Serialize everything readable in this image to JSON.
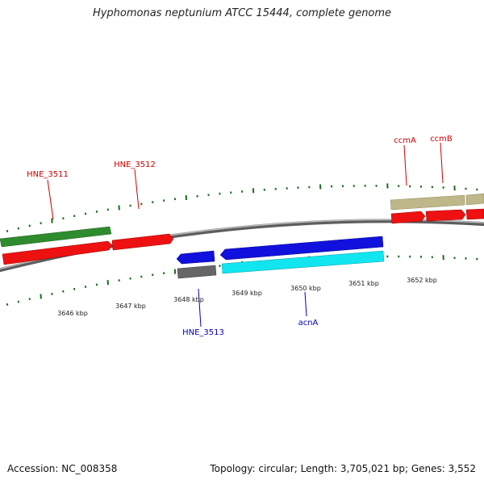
{
  "title": "Hyphomonas neptunium ATCC 15444, complete genome",
  "footer": {
    "accession": "Accession: NC_008358",
    "summary": "Topology: circular; Length: 3,705,021 bp; Genes: 3,552"
  },
  "colors": {
    "backbone": "#8a8a8a",
    "tick_minor": "#1a6b1a",
    "tick_major": "#1a6b1a",
    "label_red": "#cc0000",
    "label_blue": "#0000bb"
  },
  "position_labels": [
    "3646 kbp",
    "3647 kbp",
    "3648 kbp",
    "3649 kbp",
    "3650 kbp",
    "3651 kbp",
    "3652 kbp"
  ],
  "genes": [
    {
      "name": "",
      "color": "#2e8b2e",
      "strand": "+",
      "track": "outer2"
    },
    {
      "name": "HNE_3511",
      "color": "#ee1111",
      "strand": "+",
      "track": "outer1",
      "label_color": "#cc0000"
    },
    {
      "name": "HNE_3512",
      "color": "#ee1111",
      "strand": "+",
      "track": "outer1",
      "label_color": "#cc0000"
    },
    {
      "name": "",
      "color": "#1111dd",
      "strand": "-",
      "track": "inner1"
    },
    {
      "name": "HNE_3513",
      "color": "#666666",
      "strand": "-",
      "track": "inner2",
      "label_color": "#0000bb"
    },
    {
      "name": "",
      "color": "#1111dd",
      "strand": "-",
      "track": "inner1"
    },
    {
      "name": "acnA",
      "color": "#11e6f0",
      "strand": "-",
      "track": "inner2",
      "label_color": "#0000bb"
    },
    {
      "name": "",
      "color": "#bdb78a",
      "strand": "+",
      "track": "outer2"
    },
    {
      "name": "",
      "color": "#bdb78a",
      "strand": "+",
      "track": "outer2"
    },
    {
      "name": "ccmA",
      "color": "#ee1111",
      "strand": "+",
      "track": "outer1",
      "label_color": "#cc0000"
    },
    {
      "name": "ccmB",
      "color": "#ee1111",
      "strand": "+",
      "track": "outer1",
      "label_color": "#cc0000"
    },
    {
      "name": "",
      "color": "#ee1111",
      "strand": "+",
      "track": "outer1"
    }
  ]
}
